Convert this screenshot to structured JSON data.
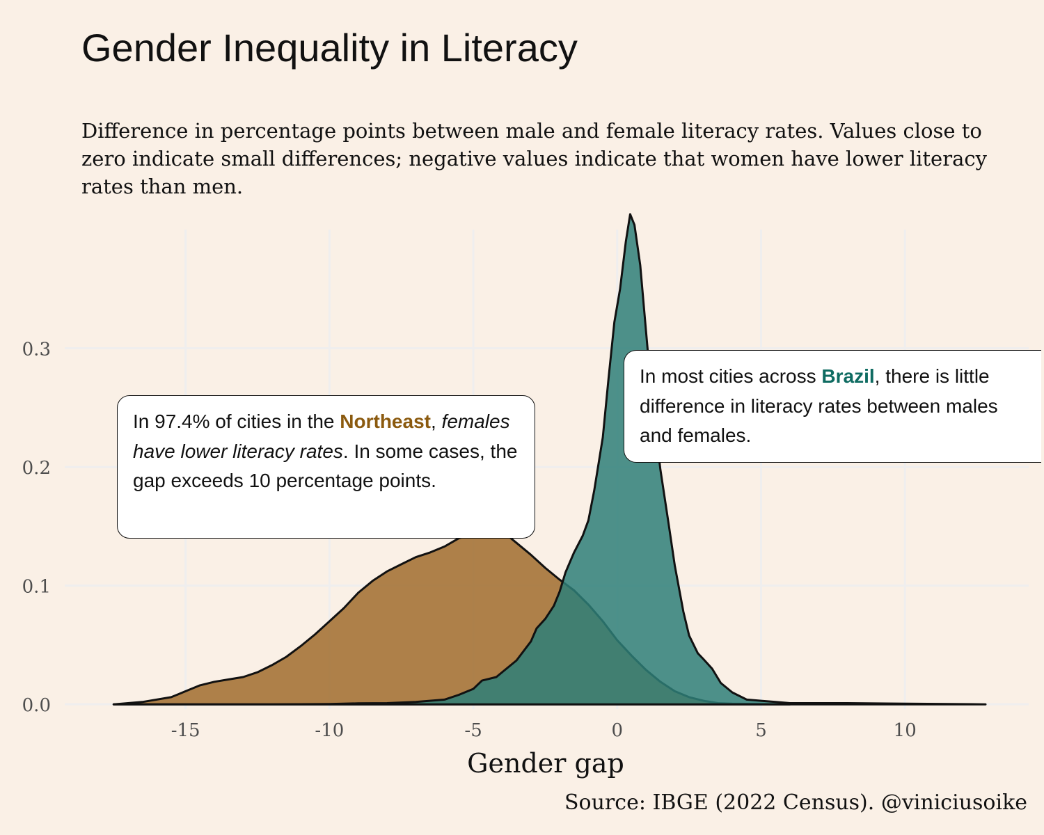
{
  "title": "Gender Inequality in Literacy",
  "subtitle": "Difference in percentage points between male and female literacy rates. Values close to zero indicate small differences; negative values indicate that women have lower literacy rates than men.",
  "caption": "Source: IBGE (2022 Census). @viniciusoike",
  "annotations": {
    "northeast": {
      "prefix": "In 97.4% of cities in the ",
      "highlight": "Northeast",
      "after_highlight": ", ",
      "italic": "females have lower literacy rates",
      "suffix": ". In some cases, the gap exceeds 10 percentage points."
    },
    "brazil": {
      "prefix": "In most cities across ",
      "highlight": "Brazil",
      "suffix": ", there is little difference in literacy rates between males and females."
    }
  },
  "colors": {
    "background": "#faf0e6",
    "grid": "#efeeee",
    "northeast": "#a06c2d",
    "brazil": "#2e7f78",
    "highlight_northeast": "#8b5a0f",
    "highlight_brazil": "#0e6b61"
  },
  "chart_data": {
    "type": "area",
    "subtype": "density",
    "xlabel": "Gender gap",
    "ylabel": "",
    "xlim": [
      -19.2,
      14.3
    ],
    "ylim": [
      -0.004,
      0.4
    ],
    "x_ticks": [
      -15,
      -10,
      -5,
      0,
      5,
      10
    ],
    "x_tick_labels": [
      "-15",
      "-10",
      "-5",
      "0",
      "5",
      "10"
    ],
    "y_ticks": [
      0.0,
      0.1,
      0.2,
      0.3
    ],
    "y_tick_labels": [
      "0.0",
      "0.1",
      "0.2",
      "0.3"
    ],
    "grid": true,
    "legend": "none",
    "series": [
      {
        "name": "Northeast",
        "color": "#a06c2d",
        "points": [
          [
            -17.5,
            0
          ],
          [
            -16.5,
            0.002
          ],
          [
            -15.5,
            0.006
          ],
          [
            -15,
            0.011
          ],
          [
            -14.5,
            0.016
          ],
          [
            -14,
            0.019
          ],
          [
            -13.5,
            0.021
          ],
          [
            -13,
            0.023
          ],
          [
            -12.5,
            0.027
          ],
          [
            -12,
            0.033
          ],
          [
            -11.5,
            0.04
          ],
          [
            -11,
            0.049
          ],
          [
            -10.5,
            0.059
          ],
          [
            -10,
            0.07
          ],
          [
            -9.5,
            0.081
          ],
          [
            -9,
            0.094
          ],
          [
            -8.5,
            0.104
          ],
          [
            -8,
            0.112
          ],
          [
            -7.5,
            0.118
          ],
          [
            -7,
            0.124
          ],
          [
            -6.5,
            0.128
          ],
          [
            -6,
            0.133
          ],
          [
            -5.5,
            0.14
          ],
          [
            -5,
            0.143
          ],
          [
            -4.5,
            0.145
          ],
          [
            -4.2,
            0.145
          ],
          [
            -3.8,
            0.142
          ],
          [
            -3.5,
            0.136
          ],
          [
            -3,
            0.126
          ],
          [
            -2.5,
            0.115
          ],
          [
            -2,
            0.105
          ],
          [
            -1.5,
            0.096
          ],
          [
            -1,
            0.084
          ],
          [
            -0.5,
            0.07
          ],
          [
            0,
            0.054
          ],
          [
            0.5,
            0.041
          ],
          [
            1,
            0.029
          ],
          [
            1.5,
            0.019
          ],
          [
            2,
            0.011
          ],
          [
            2.5,
            0.006
          ],
          [
            3,
            0.003
          ],
          [
            3.5,
            0.001
          ],
          [
            4,
            0.0005
          ],
          [
            5,
            0.0002
          ],
          [
            6,
            0
          ]
        ]
      },
      {
        "name": "Brazil",
        "color": "#2e7f78",
        "points": [
          [
            -17.5,
            0
          ],
          [
            -12,
            0
          ],
          [
            -10,
            0.0003
          ],
          [
            -9,
            0.0008
          ],
          [
            -8,
            0.001
          ],
          [
            -7,
            0.002
          ],
          [
            -6,
            0.004
          ],
          [
            -5.5,
            0.008
          ],
          [
            -5,
            0.013
          ],
          [
            -4.7,
            0.02
          ],
          [
            -4.2,
            0.023
          ],
          [
            -4,
            0.027
          ],
          [
            -3.5,
            0.037
          ],
          [
            -3,
            0.053
          ],
          [
            -2.8,
            0.064
          ],
          [
            -2.5,
            0.072
          ],
          [
            -2.2,
            0.083
          ],
          [
            -2,
            0.095
          ],
          [
            -1.8,
            0.111
          ],
          [
            -1.5,
            0.128
          ],
          [
            -1.2,
            0.142
          ],
          [
            -1,
            0.155
          ],
          [
            -0.8,
            0.18
          ],
          [
            -0.5,
            0.225
          ],
          [
            -0.3,
            0.275
          ],
          [
            -0.1,
            0.322
          ],
          [
            0.1,
            0.35
          ],
          [
            0.3,
            0.39
          ],
          [
            0.45,
            0.413
          ],
          [
            0.6,
            0.404
          ],
          [
            0.8,
            0.37
          ],
          [
            1,
            0.315
          ],
          [
            1.2,
            0.26
          ],
          [
            1.5,
            0.198
          ],
          [
            1.8,
            0.15
          ],
          [
            2,
            0.117
          ],
          [
            2.3,
            0.078
          ],
          [
            2.5,
            0.058
          ],
          [
            2.8,
            0.043
          ],
          [
            3,
            0.038
          ],
          [
            3.3,
            0.03
          ],
          [
            3.6,
            0.018
          ],
          [
            4,
            0.01
          ],
          [
            4.5,
            0.004
          ],
          [
            5,
            0.003
          ],
          [
            5.5,
            0.002
          ],
          [
            6,
            0.001
          ],
          [
            8,
            0.001
          ],
          [
            10,
            0.0005
          ],
          [
            12.8,
            0
          ]
        ]
      }
    ]
  }
}
